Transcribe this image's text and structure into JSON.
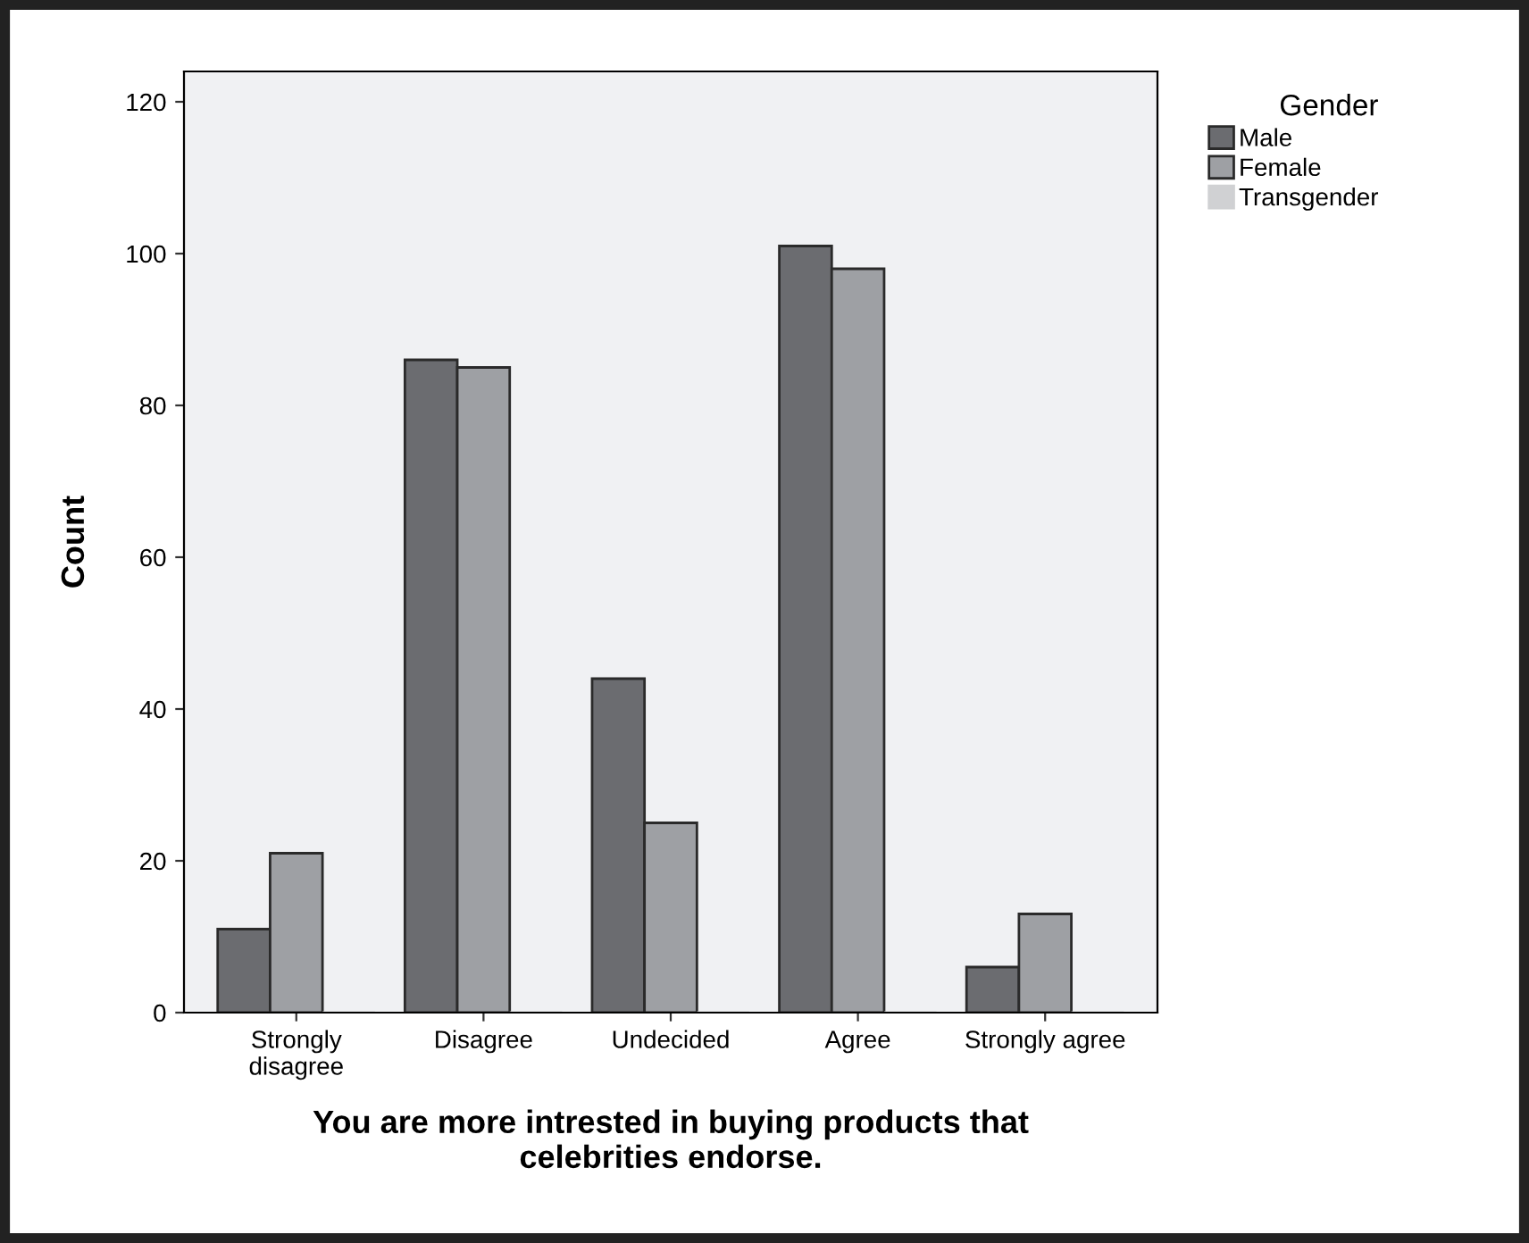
{
  "chart_data": {
    "type": "bar",
    "xlabel": "You are more intrested in buying products that\ncelebrities endorse.",
    "ylabel": "Count",
    "legend_title": "Gender",
    "categories": [
      "Strongly\ndisagree",
      "Disagree",
      "Undecided",
      "Agree",
      "Strongly agree"
    ],
    "series": [
      {
        "name": "Male",
        "color": "#6b6c70",
        "values": [
          11,
          86,
          44,
          101,
          6
        ]
      },
      {
        "name": "Female",
        "color": "#9ea0a4",
        "values": [
          21,
          85,
          25,
          98,
          13
        ]
      },
      {
        "name": "Transgender",
        "color": "#d0d1d3",
        "values": [
          0,
          0,
          0,
          0,
          0
        ]
      }
    ],
    "ylim": [
      0,
      124
    ],
    "yticks": [
      0,
      20,
      40,
      60,
      80,
      100,
      120
    ],
    "grid": false,
    "legend": "top right"
  }
}
